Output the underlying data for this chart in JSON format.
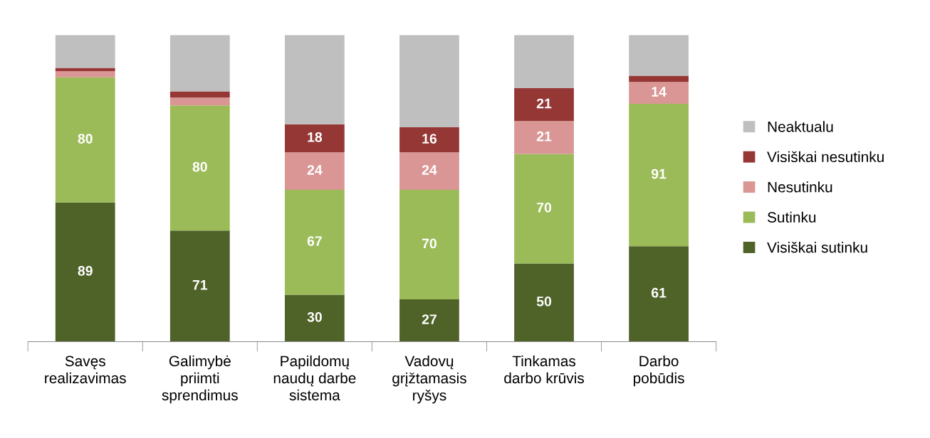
{
  "chart_data": {
    "type": "bar",
    "stacked": true,
    "legend": "right",
    "grid": false,
    "categories": [
      "Savęs\nrealizavimas",
      "Galimybė\npriimti\nsprendimus",
      "Papildomų\nnaudų darbe\nsistema",
      "Vadovų\ngrįžtamasis\nryšys",
      "Tinkamas\ndarbo krūvis",
      "Darbo\npobūdis"
    ],
    "series": [
      {
        "name": "Visiškai sutinku",
        "color": "#4f6228",
        "values": [
          89,
          71,
          30,
          27,
          50,
          61
        ],
        "value_labels": [
          "89",
          "71",
          "30",
          "27",
          "50",
          "61"
        ]
      },
      {
        "name": "Sutinku",
        "color": "#9bbb59",
        "values": [
          80,
          80,
          67,
          70,
          70,
          91
        ],
        "value_labels": [
          "80",
          "80",
          "67",
          "70",
          "70",
          "91"
        ]
      },
      {
        "name": "Nesutinku",
        "color": "#d99694",
        "values": [
          4,
          5,
          24,
          24,
          21,
          14
        ],
        "value_labels": [
          null,
          null,
          "24",
          "24",
          "21",
          "14"
        ]
      },
      {
        "name": "Visiškai nesutinku",
        "color": "#953735",
        "values": [
          2,
          4,
          18,
          16,
          21,
          4
        ],
        "value_labels": [
          null,
          null,
          "18",
          "16",
          "21",
          null
        ]
      },
      {
        "name": "Neaktualu",
        "color": "#bfbfbf",
        "values": [
          21,
          36,
          57,
          59,
          34,
          26
        ],
        "value_labels": [
          null,
          null,
          null,
          null,
          null,
          null
        ]
      }
    ]
  }
}
